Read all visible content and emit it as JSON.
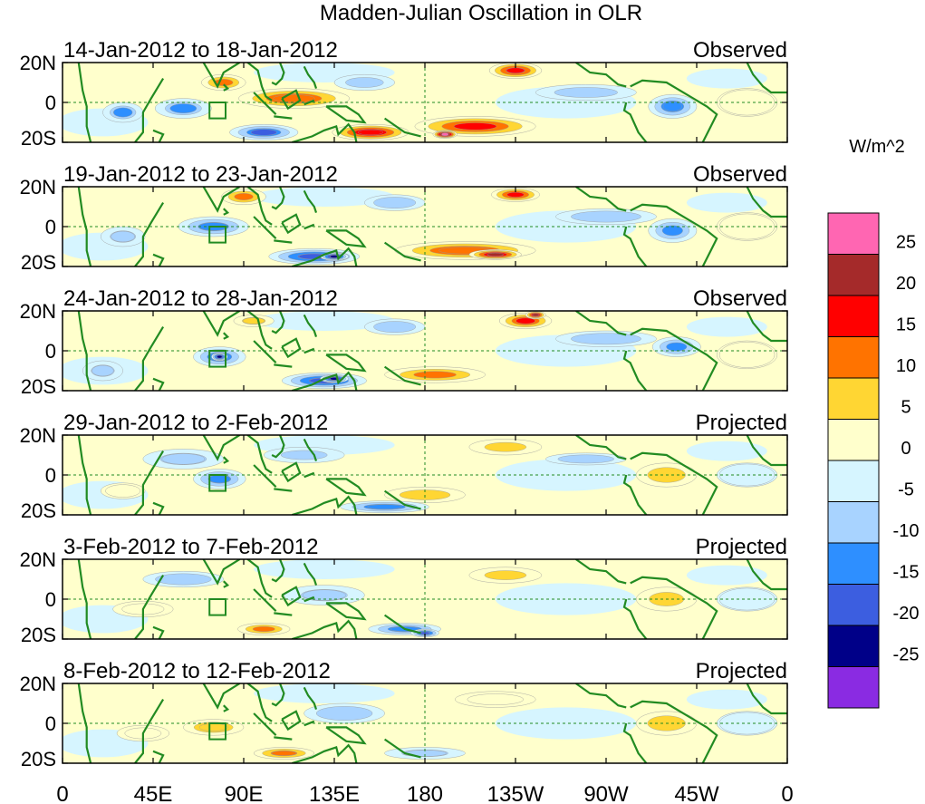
{
  "chart_data": {
    "type": "heatmap",
    "title": "Madden-Julian Oscillation in OLR",
    "variable": "OLR anomaly",
    "units": "W/m^2",
    "x_ticks": [
      "0",
      "45E",
      "90E",
      "135E",
      "180",
      "135W",
      "90W",
      "45W",
      "0"
    ],
    "x_tick_values": [
      0,
      45,
      90,
      135,
      180,
      225,
      270,
      315,
      360
    ],
    "y_ticks": [
      "20N",
      "0",
      "20S"
    ],
    "y_tick_values": [
      20,
      0,
      -20
    ],
    "xlim": [
      0,
      360
    ],
    "ylim": [
      -20,
      20
    ],
    "colorbar": {
      "labels": [
        "25",
        "20",
        "15",
        "10",
        "5",
        "0",
        "-5",
        "-10",
        "-15",
        "-20",
        "-25"
      ],
      "levels": [
        25,
        20,
        15,
        10,
        5,
        0,
        -5,
        -10,
        -15,
        -20,
        -25
      ],
      "colors": [
        "#ff66b2",
        "#a52a2a",
        "#ff0000",
        "#ff7300",
        "#ffd633",
        "#ffffcc",
        "#d6f5ff",
        "#a8d3ff",
        "#2e8fff",
        "#3c5ee0",
        "#000088",
        "#8a2be2"
      ]
    },
    "panels": [
      {
        "date_range": "14-Jan-2012 to 18-Jan-2012",
        "status": "Observed",
        "features": [
          {
            "lon": 225,
            "lat": 16,
            "w": 26,
            "h": 8,
            "value": 18
          },
          {
            "lon": 205,
            "lat": -12,
            "w": 60,
            "h": 10,
            "value": 17
          },
          {
            "lon": 153,
            "lat": -15,
            "w": 38,
            "h": 8,
            "value": 20
          },
          {
            "lon": 190,
            "lat": -16,
            "w": 12,
            "h": 4,
            "value": 27
          },
          {
            "lon": 115,
            "lat": 2,
            "w": 55,
            "h": 10,
            "value": 15
          },
          {
            "lon": 80,
            "lat": 10,
            "w": 22,
            "h": 8,
            "value": 12
          },
          {
            "lon": 100,
            "lat": -15,
            "w": 34,
            "h": 8,
            "value": -15
          },
          {
            "lon": 60,
            "lat": -3,
            "w": 28,
            "h": 10,
            "value": -10
          },
          {
            "lon": 30,
            "lat": -5,
            "w": 20,
            "h": 10,
            "value": -10
          },
          {
            "lon": 303,
            "lat": -2,
            "w": 24,
            "h": 12,
            "value": -14
          },
          {
            "lon": 260,
            "lat": 5,
            "w": 50,
            "h": 8,
            "value": -6
          },
          {
            "lon": 150,
            "lat": 10,
            "w": 30,
            "h": 8,
            "value": -6
          },
          {
            "lon": 340,
            "lat": 0,
            "w": 30,
            "h": 14,
            "value": 3
          }
        ]
      },
      {
        "date_range": "19-Jan-2012 to 23-Jan-2012",
        "status": "Observed",
        "features": [
          {
            "lon": 225,
            "lat": 16,
            "w": 24,
            "h": 7,
            "value": 17
          },
          {
            "lon": 90,
            "lat": 15,
            "w": 22,
            "h": 8,
            "value": 12
          },
          {
            "lon": 200,
            "lat": -12,
            "w": 70,
            "h": 9,
            "value": 15
          },
          {
            "lon": 215,
            "lat": -14,
            "w": 26,
            "h": 5,
            "value": 21
          },
          {
            "lon": 125,
            "lat": -15,
            "w": 45,
            "h": 8,
            "value": -18
          },
          {
            "lon": 135,
            "lat": -15,
            "w": 14,
            "h": 4,
            "value": -23
          },
          {
            "lon": 75,
            "lat": 0,
            "w": 35,
            "h": 10,
            "value": -13
          },
          {
            "lon": 30,
            "lat": -5,
            "w": 22,
            "h": 10,
            "value": -8
          },
          {
            "lon": 303,
            "lat": -2,
            "w": 24,
            "h": 12,
            "value": -12
          },
          {
            "lon": 270,
            "lat": 5,
            "w": 50,
            "h": 8,
            "value": -5
          },
          {
            "lon": 165,
            "lat": 12,
            "w": 30,
            "h": 8,
            "value": -5
          },
          {
            "lon": 340,
            "lat": 0,
            "w": 30,
            "h": 14,
            "value": 3
          }
        ]
      },
      {
        "date_range": "24-Jan-2012 to 28-Jan-2012",
        "status": "Observed",
        "features": [
          {
            "lon": 230,
            "lat": 15,
            "w": 26,
            "h": 8,
            "value": 16
          },
          {
            "lon": 235,
            "lat": 18,
            "w": 10,
            "h": 4,
            "value": 21
          },
          {
            "lon": 185,
            "lat": -12,
            "w": 50,
            "h": 8,
            "value": 12
          },
          {
            "lon": 130,
            "lat": -15,
            "w": 42,
            "h": 8,
            "value": -18
          },
          {
            "lon": 135,
            "lat": -14,
            "w": 14,
            "h": 4,
            "value": -23
          },
          {
            "lon": 78,
            "lat": -3,
            "w": 26,
            "h": 10,
            "value": -14
          },
          {
            "lon": 78,
            "lat": -3,
            "w": 8,
            "h": 4,
            "value": -22
          },
          {
            "lon": 95,
            "lat": 15,
            "w": 20,
            "h": 6,
            "value": 8
          },
          {
            "lon": 20,
            "lat": -10,
            "w": 20,
            "h": 10,
            "value": -8
          },
          {
            "lon": 305,
            "lat": 2,
            "w": 24,
            "h": 10,
            "value": -12
          },
          {
            "lon": 270,
            "lat": 6,
            "w": 50,
            "h": 8,
            "value": -5
          },
          {
            "lon": 165,
            "lat": 12,
            "w": 30,
            "h": 8,
            "value": -5
          },
          {
            "lon": 340,
            "lat": -2,
            "w": 30,
            "h": 14,
            "value": 3
          }
        ]
      },
      {
        "date_range": "29-Jan-2012 to 2-Feb-2012",
        "status": "Projected",
        "features": [
          {
            "lon": 220,
            "lat": 14,
            "w": 36,
            "h": 8,
            "value": 7
          },
          {
            "lon": 180,
            "lat": -10,
            "w": 40,
            "h": 8,
            "value": 6
          },
          {
            "lon": 160,
            "lat": -16,
            "w": 44,
            "h": 6,
            "value": -14
          },
          {
            "lon": 78,
            "lat": -2,
            "w": 26,
            "h": 10,
            "value": -13
          },
          {
            "lon": 60,
            "lat": 8,
            "w": 40,
            "h": 10,
            "value": -8
          },
          {
            "lon": 30,
            "lat": -8,
            "w": 22,
            "h": 8,
            "value": 4
          },
          {
            "lon": 300,
            "lat": 0,
            "w": 30,
            "h": 12,
            "value": 6
          },
          {
            "lon": 120,
            "lat": 10,
            "w": 40,
            "h": 8,
            "value": -7
          },
          {
            "lon": 260,
            "lat": 8,
            "w": 40,
            "h": 6,
            "value": -5
          },
          {
            "lon": 340,
            "lat": 0,
            "w": 30,
            "h": 12,
            "value": -3
          }
        ]
      },
      {
        "date_range": "3-Feb-2012 to 7-Feb-2012",
        "status": "Projected",
        "features": [
          {
            "lon": 220,
            "lat": 12,
            "w": 36,
            "h": 8,
            "value": 7
          },
          {
            "lon": 170,
            "lat": -15,
            "w": 36,
            "h": 6,
            "value": -14
          },
          {
            "lon": 180,
            "lat": -17,
            "w": 14,
            "h": 4,
            "value": -18
          },
          {
            "lon": 100,
            "lat": -15,
            "w": 26,
            "h": 6,
            "value": 12
          },
          {
            "lon": 40,
            "lat": -5,
            "w": 30,
            "h": 8,
            "value": 5
          },
          {
            "lon": 130,
            "lat": 2,
            "w": 40,
            "h": 10,
            "value": -8
          },
          {
            "lon": 300,
            "lat": 0,
            "w": 30,
            "h": 12,
            "value": 7
          },
          {
            "lon": 60,
            "lat": 10,
            "w": 40,
            "h": 8,
            "value": -5
          },
          {
            "lon": 340,
            "lat": 0,
            "w": 30,
            "h": 12,
            "value": -3
          }
        ]
      },
      {
        "date_range": "8-Feb-2012 to 12-Feb-2012",
        "status": "Projected",
        "features": [
          {
            "lon": 110,
            "lat": -15,
            "w": 30,
            "h": 6,
            "value": 13
          },
          {
            "lon": 75,
            "lat": -2,
            "w": 30,
            "h": 8,
            "value": 10
          },
          {
            "lon": 40,
            "lat": -5,
            "w": 26,
            "h": 8,
            "value": 5
          },
          {
            "lon": 180,
            "lat": -15,
            "w": 40,
            "h": 6,
            "value": -8
          },
          {
            "lon": 215,
            "lat": 12,
            "w": 40,
            "h": 8,
            "value": 5
          },
          {
            "lon": 300,
            "lat": 0,
            "w": 30,
            "h": 12,
            "value": 6
          },
          {
            "lon": 140,
            "lat": 5,
            "w": 40,
            "h": 10,
            "value": -5
          },
          {
            "lon": 340,
            "lat": 0,
            "w": 30,
            "h": 12,
            "value": -3
          }
        ]
      }
    ]
  }
}
